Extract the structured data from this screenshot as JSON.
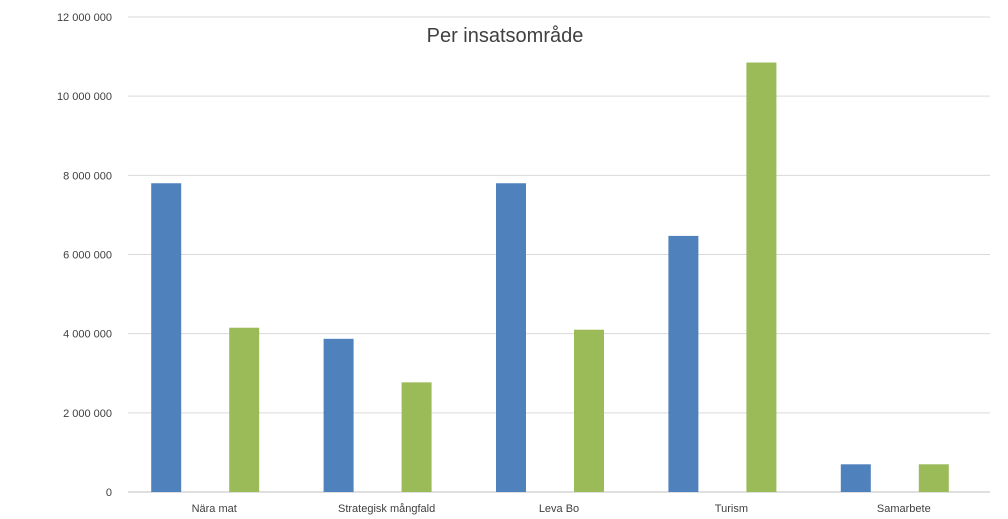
{
  "chart_data": {
    "type": "bar",
    "title": "Per insatsområde",
    "categories": [
      "Nära mat",
      "Strategisk mångfald",
      "Leva Bo",
      "Turism",
      "Samarbete"
    ],
    "series": [
      {
        "values": [
          7800000,
          3870000,
          7800000,
          6470000,
          700000
        ],
        "color": "#4F81BD"
      },
      {
        "values": [
          4150000,
          2770000,
          4100000,
          10850000,
          700000
        ],
        "color": "#9BBB59"
      }
    ],
    "ylim": [
      0,
      12000000
    ],
    "yticks": [
      0,
      2000000,
      4000000,
      6000000,
      8000000,
      10000000,
      12000000
    ],
    "ytick_labels": [
      "0",
      "2 000 000",
      "4 000 000",
      "6 000 000",
      "8 000 000",
      "10 000 000",
      "12 000 000"
    ],
    "grid": true,
    "legend": "none"
  }
}
